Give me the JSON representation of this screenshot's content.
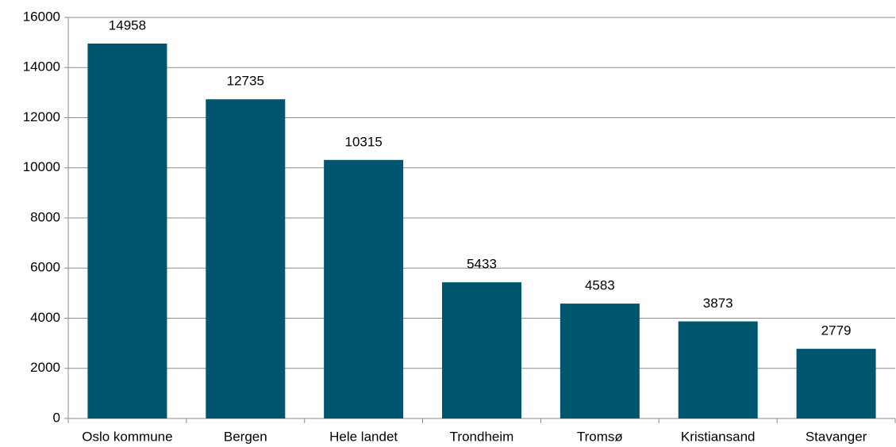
{
  "chart_data": {
    "type": "bar",
    "categories": [
      "Oslo kommune",
      "Bergen",
      "Hele landet",
      "Trondheim",
      "Tromsø",
      "Kristiansand",
      "Stavanger"
    ],
    "values": [
      14958,
      12735,
      10315,
      5433,
      4583,
      3873,
      2779
    ],
    "color": "#00566f",
    "ylim": [
      0,
      16000
    ],
    "yticks": [
      0,
      2000,
      4000,
      6000,
      8000,
      10000,
      12000,
      14000,
      16000
    ],
    "grid": true,
    "data_labels": true
  }
}
